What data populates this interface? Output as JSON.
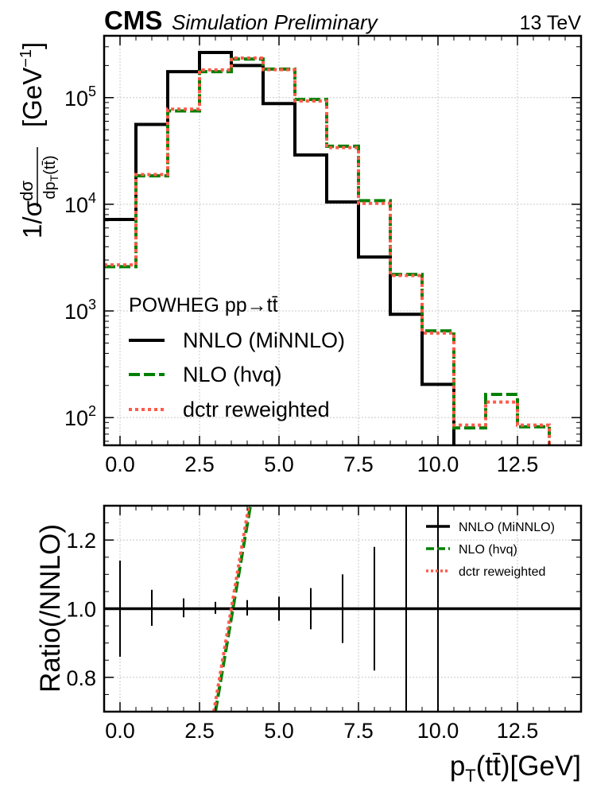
{
  "header": {
    "brand": "CMS",
    "subtitle": "Simulation Preliminary",
    "energy": "13 TeV"
  },
  "chart_data": [
    {
      "type": "line",
      "scale": "log",
      "title": "",
      "ylabel": "1/σ dσ/dp_T(tt̄) [GeV^-1]",
      "xlim": [
        -0.5,
        14.5
      ],
      "ylim": [
        55,
        380000
      ],
      "grid": true,
      "x_ticks": [
        "0.0",
        "2.5",
        "5.0",
        "7.5",
        "10.0",
        "12.5"
      ],
      "y_ticks": [
        "10^2",
        "10^3",
        "10^4",
        "10^5"
      ],
      "legend": {
        "title": "POWHEG pp→tt̄",
        "placement": "lower-left",
        "entries": [
          "NNLO (MiNNLO)",
          "NLO (hvq)",
          "dctr reweighted"
        ]
      },
      "bin_edges": [
        -0.5,
        0.5,
        1.5,
        2.5,
        3.5,
        4.5,
        5.5,
        6.5,
        7.5,
        8.5,
        9.5,
        10.5,
        11.5,
        12.5,
        13.5
      ],
      "series": [
        {
          "name": "NNLO (MiNNLO)",
          "color": "#000000",
          "style": "solid",
          "values": [
            7200,
            56000,
            175000,
            265000,
            200000,
            88000,
            29000,
            10500,
            3200,
            930,
            205,
            0,
            0,
            0
          ]
        },
        {
          "name": "NLO (hvq)",
          "color": "#008000",
          "style": "dashed",
          "values": [
            2600,
            18500,
            75000,
            175000,
            230000,
            185000,
            96000,
            35000,
            10800,
            2200,
            650,
            80,
            165,
            82
          ]
        },
        {
          "name": "dctr reweighted",
          "color": "#ff5a4a",
          "style": "dotted",
          "values": [
            2700,
            19000,
            78000,
            182000,
            235000,
            183000,
            93000,
            34000,
            10200,
            2150,
            620,
            85,
            140,
            85
          ]
        }
      ]
    },
    {
      "type": "line",
      "title": "",
      "xlabel": "p_T(tt̄)[GeV]",
      "ylabel": "Ratio(/NNLO)",
      "xlim": [
        -0.5,
        14.5
      ],
      "ylim": [
        0.7,
        1.3
      ],
      "grid": true,
      "x_ticks": [
        "0.0",
        "2.5",
        "5.0",
        "7.5",
        "10.0",
        "12.5"
      ],
      "y_ticks": [
        "0.8",
        "1.0",
        "1.2"
      ],
      "legend": {
        "placement": "top-right",
        "entries": [
          "NNLO (MiNNLO)",
          "NLO (hvq)",
          "dctr reweighted"
        ]
      },
      "reference": {
        "name": "NNLO (MiNNLO)",
        "value": 1.0,
        "color": "#000000"
      },
      "error_bars": {
        "x": [
          0,
          1,
          2,
          3,
          4,
          5,
          6,
          7,
          8,
          9,
          10
        ],
        "low": [
          0.86,
          0.95,
          0.975,
          0.985,
          0.98,
          0.965,
          0.94,
          0.9,
          0.82,
          0.7,
          0.7
        ],
        "high": [
          1.14,
          1.055,
          1.03,
          1.02,
          1.025,
          1.035,
          1.06,
          1.1,
          1.18,
          1.3,
          1.3
        ]
      },
      "series": [
        {
          "name": "NLO (hvq)",
          "color": "#008000",
          "style": "dashed",
          "x": [
            3.0,
            4.1
          ],
          "y": [
            0.7,
            1.3
          ]
        },
        {
          "name": "dctr reweighted",
          "color": "#ff5a4a",
          "style": "dotted",
          "x": [
            2.95,
            4.05
          ],
          "y": [
            0.7,
            1.3
          ]
        }
      ]
    }
  ]
}
